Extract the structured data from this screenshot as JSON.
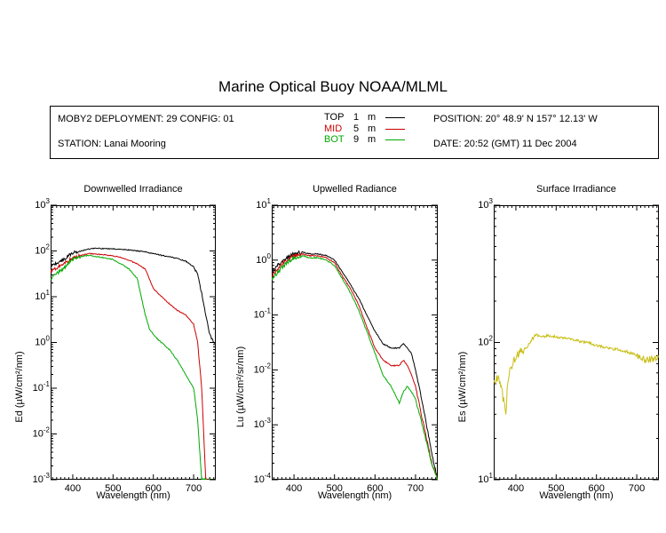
{
  "header": {
    "title": "Marine Optical Buoy NOAA/MLML",
    "deployment": "MOBY2 DEPLOYMENT: 29 CONFIG: 01",
    "station": "STATION: Lanai Mooring",
    "position": "POSITION: 20° 48.9' N   157° 12.13' W",
    "date": "DATE: 20:52 (GMT) 11 Dec 2004"
  },
  "legend": [
    {
      "name": "TOP",
      "depth": "1",
      "unit": "m",
      "color": "#000000"
    },
    {
      "name": "MID",
      "depth": "5",
      "unit": "m",
      "color": "#cc0000"
    },
    {
      "name": "BOT",
      "depth": "9",
      "unit": "m",
      "color": "#00aa00"
    }
  ],
  "chart_data": [
    {
      "type": "line",
      "title": "Downwelled Irradiance",
      "xlabel": "Wavelength (nm)",
      "ylabel": "Ed  (µW/cm²/nm)",
      "xlim": [
        345,
        755
      ],
      "ylim": [
        0.001,
        1000
      ],
      "yscale": "log",
      "xticks": [
        400,
        500,
        600,
        700
      ],
      "yticks": [
        {
          "b": "10",
          "e": "-3"
        },
        {
          "b": "10",
          "e": "-2"
        },
        {
          "b": "10",
          "e": "-1"
        },
        {
          "b": "10",
          "e": "0"
        },
        {
          "b": "10",
          "e": "1"
        },
        {
          "b": "10",
          "e": "2"
        },
        {
          "b": "10",
          "e": "3"
        }
      ],
      "series": [
        {
          "name": "TOP",
          "color": "#000000",
          "x": [
            345,
            360,
            375,
            390,
            400,
            420,
            440,
            460,
            480,
            500,
            520,
            540,
            560,
            580,
            600,
            620,
            640,
            660,
            680,
            700,
            710,
            720,
            730,
            740,
            750,
            755
          ],
          "y": [
            48,
            55,
            62,
            80,
            90,
            100,
            110,
            115,
            112,
            112,
            108,
            105,
            100,
            95,
            88,
            80,
            75,
            68,
            60,
            45,
            30,
            12,
            4,
            1.5,
            1.0,
            1.0
          ]
        },
        {
          "name": "MID",
          "color": "#cc0000",
          "x": [
            345,
            360,
            375,
            390,
            400,
            420,
            440,
            460,
            480,
            500,
            520,
            540,
            560,
            580,
            590,
            600,
            620,
            640,
            660,
            680,
            700,
            710,
            720,
            730,
            740,
            750,
            755
          ],
          "y": [
            35,
            42,
            50,
            62,
            70,
            80,
            88,
            85,
            82,
            78,
            72,
            62,
            52,
            40,
            25,
            15,
            10,
            7,
            5,
            4,
            2.5,
            1.0,
            0.1,
            0.001,
            0.001,
            0.0006,
            0.0006
          ]
        },
        {
          "name": "BOT",
          "color": "#00aa00",
          "x": [
            345,
            360,
            375,
            390,
            400,
            420,
            440,
            460,
            480,
            500,
            520,
            540,
            560,
            570,
            580,
            590,
            600,
            610,
            620,
            640,
            660,
            680,
            700,
            710,
            720,
            730,
            740,
            750,
            755
          ],
          "y": [
            25,
            32,
            40,
            55,
            65,
            75,
            80,
            75,
            70,
            65,
            52,
            40,
            25,
            10,
            4,
            2,
            1.5,
            1.2,
            1.0,
            0.7,
            0.4,
            0.2,
            0.1,
            0.02,
            0.001,
            0.001,
            0.001,
            0.0009,
            0.0009
          ]
        }
      ]
    },
    {
      "type": "line",
      "title": "Upwelled Radiance",
      "xlabel": "Wavelength (nm)",
      "ylabel": "Lu  (µW/cm²/sr/nm)",
      "xlim": [
        345,
        755
      ],
      "ylim": [
        0.0001,
        10
      ],
      "yscale": "log",
      "xticks": [
        400,
        500,
        600,
        700
      ],
      "yticks": [
        {
          "b": "10",
          "e": "-4"
        },
        {
          "b": "10",
          "e": "-3"
        },
        {
          "b": "10",
          "e": "-2"
        },
        {
          "b": "10",
          "e": "-1"
        },
        {
          "b": "10",
          "e": "0"
        },
        {
          "b": "10",
          "e": "1"
        }
      ],
      "series": [
        {
          "name": "TOP",
          "color": "#000000",
          "x": [
            345,
            360,
            375,
            390,
            400,
            420,
            440,
            460,
            480,
            500,
            520,
            540,
            560,
            580,
            600,
            620,
            640,
            660,
            670,
            680,
            690,
            700,
            720,
            740,
            755
          ],
          "y": [
            0.6,
            0.8,
            1.0,
            1.2,
            1.3,
            1.4,
            1.3,
            1.3,
            1.2,
            1.0,
            0.6,
            0.35,
            0.2,
            0.1,
            0.05,
            0.03,
            0.025,
            0.025,
            0.03,
            0.025,
            0.02,
            0.01,
            0.002,
            0.0003,
            0.0001
          ]
        },
        {
          "name": "MID",
          "color": "#cc0000",
          "x": [
            345,
            360,
            375,
            390,
            400,
            420,
            440,
            460,
            480,
            500,
            520,
            540,
            560,
            580,
            600,
            620,
            640,
            660,
            670,
            680,
            690,
            700,
            720,
            740,
            755
          ],
          "y": [
            0.5,
            0.7,
            0.9,
            1.1,
            1.2,
            1.3,
            1.2,
            1.2,
            1.1,
            0.9,
            0.5,
            0.3,
            0.15,
            0.06,
            0.025,
            0.015,
            0.012,
            0.012,
            0.015,
            0.012,
            0.008,
            0.005,
            0.001,
            0.0002,
            0.0001
          ]
        },
        {
          "name": "BOT",
          "color": "#00aa00",
          "x": [
            345,
            360,
            375,
            390,
            400,
            420,
            440,
            460,
            480,
            500,
            520,
            540,
            560,
            580,
            600,
            620,
            640,
            660,
            670,
            680,
            690,
            700,
            720,
            740,
            755
          ],
          "y": [
            0.45,
            0.6,
            0.8,
            1.0,
            1.1,
            1.2,
            1.1,
            1.1,
            1.0,
            0.8,
            0.45,
            0.25,
            0.12,
            0.05,
            0.02,
            0.008,
            0.005,
            0.0025,
            0.004,
            0.005,
            0.004,
            0.003,
            0.0008,
            0.0002,
            0.0001
          ]
        }
      ]
    },
    {
      "type": "line",
      "title": "Surface Irradiance",
      "xlabel": "Wavelength (nm)",
      "ylabel": "Es  (µW/cm²/nm)",
      "xlim": [
        345,
        755
      ],
      "ylim": [
        10,
        1000
      ],
      "yscale": "log",
      "xticks": [
        400,
        500,
        600,
        700
      ],
      "yticks": [
        {
          "b": "10",
          "e": "1"
        },
        {
          "b": "10",
          "e": "2"
        },
        {
          "b": "10",
          "e": "3"
        }
      ],
      "series": [
        {
          "name": "Es",
          "color": "#c8be14",
          "x": [
            345,
            355,
            365,
            375,
            380,
            385,
            390,
            400,
            410,
            420,
            430,
            440,
            450,
            460,
            480,
            500,
            520,
            540,
            560,
            580,
            600,
            620,
            640,
            660,
            680,
            700,
            720,
            740,
            755
          ],
          "y": [
            50,
            55,
            45,
            30,
            55,
            60,
            65,
            80,
            85,
            88,
            95,
            105,
            115,
            110,
            112,
            110,
            108,
            105,
            102,
            100,
            95,
            92,
            90,
            88,
            85,
            80,
            75,
            75,
            78
          ]
        }
      ]
    }
  ]
}
